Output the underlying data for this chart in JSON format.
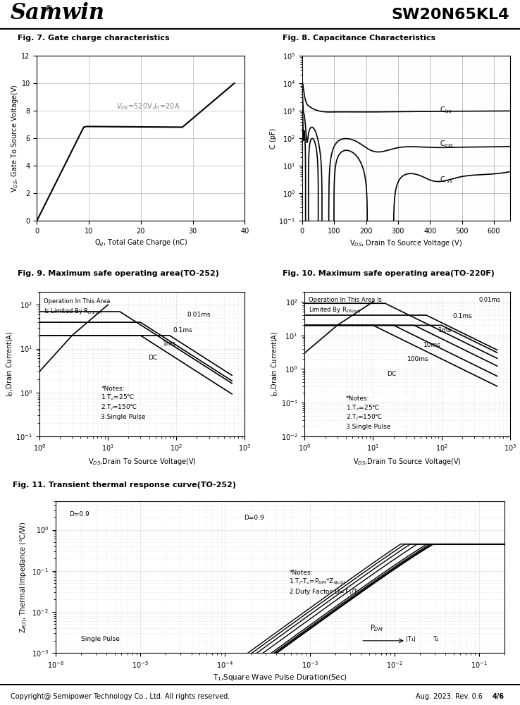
{
  "title_company": "Samwin",
  "title_part": "SW20N65KL4",
  "fig7_title": "Fig. 7. Gate charge characteristics",
  "fig8_title": "Fig. 8. Capacitance Characteristics",
  "fig9_title": "Fig. 9. Maximum safe operating area(TO-252)",
  "fig10_title": "Fig. 10. Maximum safe operating area(TO-220F)",
  "fig11_title": "Fig. 11. Transient thermal response curve(TO-252)",
  "footer_left": "Copyright@ Semipower Technology Co., Ltd. All rights reserved.",
  "footer_right": "Aug. 2023. Rev. 0.6",
  "footer_page": "4/6",
  "fig7_annotation": "V₀ₛ=520V,I₀=20A",
  "fig9_note": "*Notes:\n1.Tᶜ=25℃\n2.Tⱼ=150℃\n3.Single Pulse",
  "fig10_note": "*Notes:\n1.Tᶜ=25℃\n2.Tⱼ=150℃\n3.Single Pulse"
}
